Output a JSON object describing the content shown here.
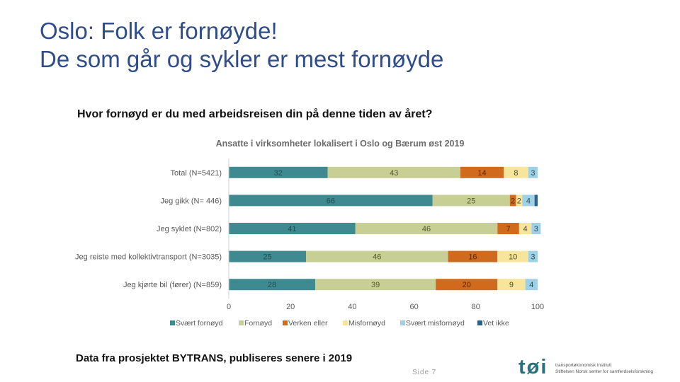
{
  "slide": {
    "title_line1": "Oslo: Folk er fornøyde!",
    "title_line2": "De som går og sykler er mest fornøyde",
    "question": "Hvor fornøyd er du med arbeidsreisen din på denne tiden av året?",
    "footnote": "Data fra prosjektet BYTRANS, publiseres senere i 2019",
    "page_number": "Side 7",
    "logo": {
      "mark": "tøi",
      "line1": "transportøkonomisk institutt",
      "line2": "Stiftelsen Norsk senter for samferdselsforskning"
    }
  },
  "chart_data": {
    "type": "bar",
    "orientation": "horizontal",
    "stacked": true,
    "title": "Ansatte i virksomheter lokalisert i Oslo og Bærum øst 2019",
    "categories": [
      "Total (N=5421)",
      "Jeg gikk (N= 446)",
      "Jeg syklet (N=802)",
      "Jeg reiste med kollektivtransport (N=3035)",
      "Jeg kjørte bil (fører) (N=859)"
    ],
    "series": [
      {
        "name": "Svært fornøyd",
        "color": "#3f8a91",
        "label_color": "#1f4e53",
        "values": [
          32,
          66,
          41,
          25,
          28
        ]
      },
      {
        "name": "Fornøyd",
        "color": "#c7cf94",
        "label_color": "#555a2e",
        "values": [
          43,
          25,
          46,
          46,
          39
        ]
      },
      {
        "name": "Verken eller",
        "color": "#d06a1c",
        "label_color": "#5a2806",
        "values": [
          14,
          2,
          7,
          16,
          20
        ]
      },
      {
        "name": "Misfornøyd",
        "color": "#f7e59c",
        "label_color": "#4a4a2a",
        "values": [
          8,
          2,
          4,
          10,
          9
        ]
      },
      {
        "name": "Svært misfornøyd",
        "color": "#9fd1e6",
        "label_color": "#2a4a5a",
        "values": [
          3,
          4,
          3,
          3,
          4
        ]
      },
      {
        "name": "Vet ikke",
        "color": "#2d5f8c",
        "label_color": "#ffffff",
        "values": [
          0,
          1,
          0,
          0,
          0
        ]
      }
    ],
    "x_ticks": [
      0,
      20,
      40,
      60,
      80,
      100
    ],
    "xlim": [
      0,
      100
    ],
    "xlabel": "",
    "ylabel": "",
    "grid": false,
    "legend": "bottom"
  }
}
